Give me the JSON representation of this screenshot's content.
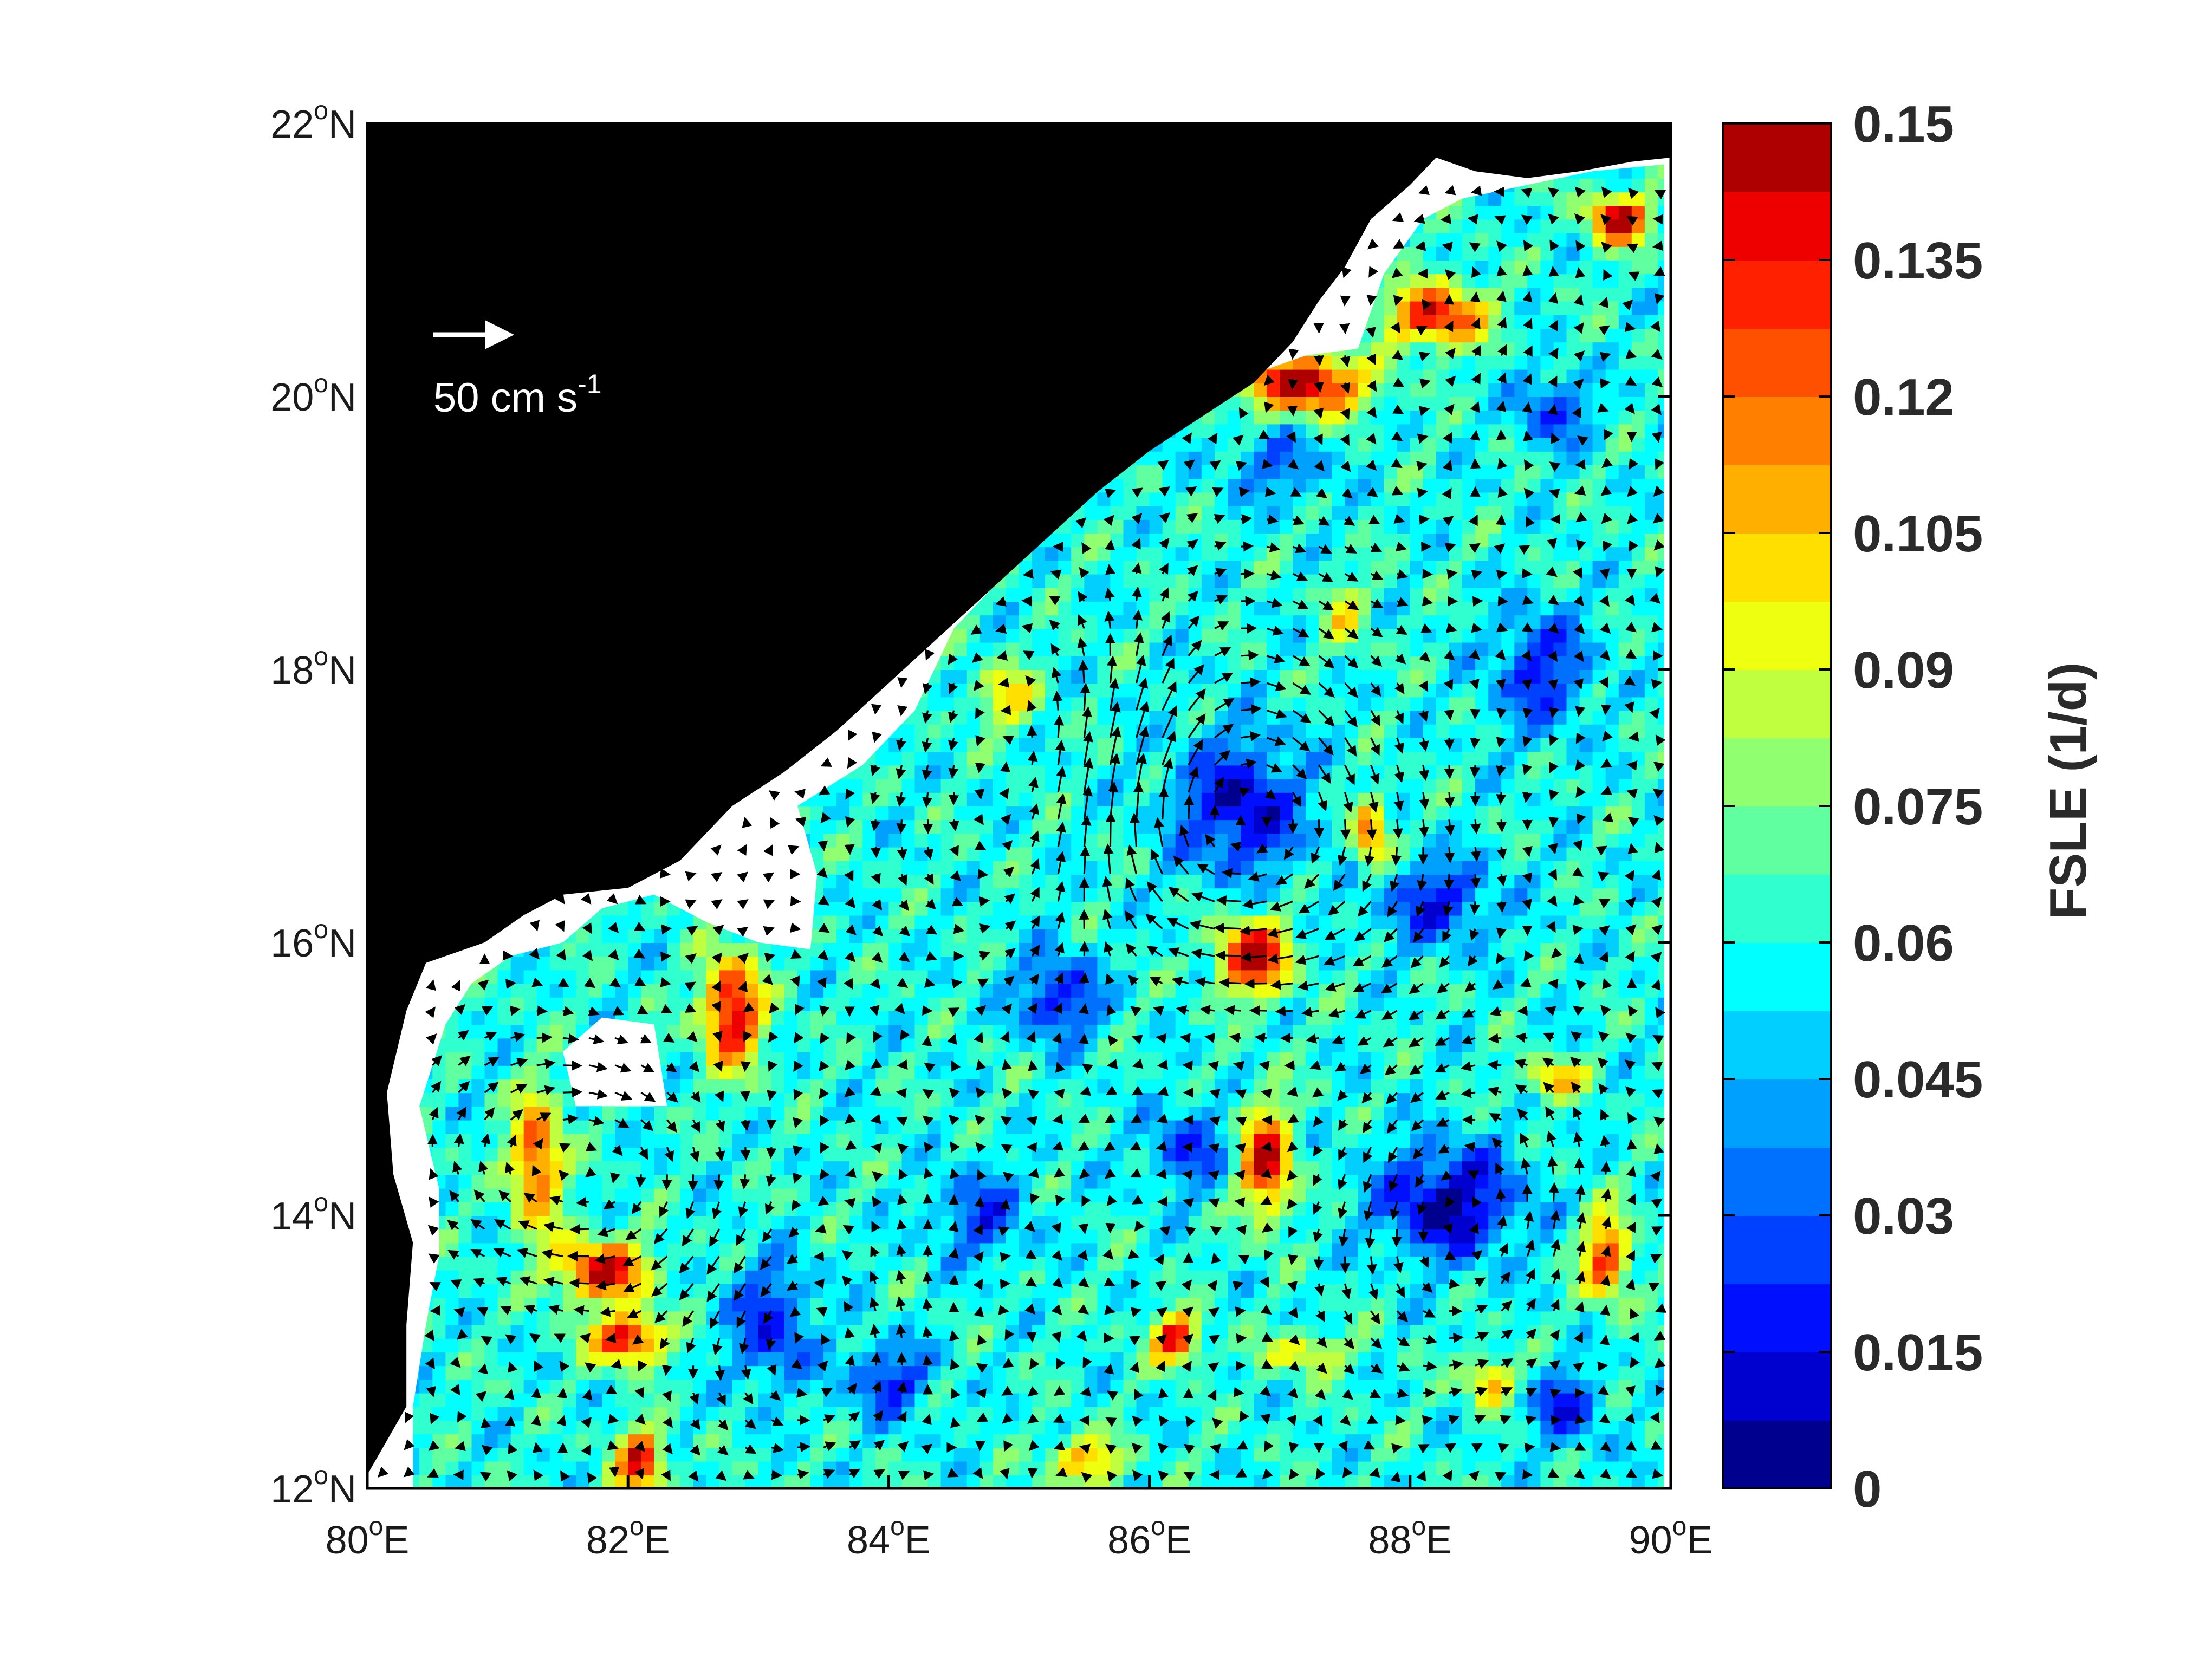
{
  "map": {
    "x_axis": {
      "ticks": [
        80,
        82,
        84,
        86,
        88,
        90
      ],
      "tick_labels": [
        {
          "num": "80",
          "sup": "o",
          "hemi": "E"
        },
        {
          "num": "82",
          "sup": "o",
          "hemi": "E"
        },
        {
          "num": "84",
          "sup": "o",
          "hemi": "E"
        },
        {
          "num": "86",
          "sup": "o",
          "hemi": "E"
        },
        {
          "num": "88",
          "sup": "o",
          "hemi": "E"
        },
        {
          "num": "90",
          "sup": "o",
          "hemi": "E"
        }
      ],
      "range": [
        80,
        90
      ]
    },
    "y_axis": {
      "ticks": [
        12,
        14,
        16,
        18,
        20,
        22
      ],
      "tick_labels": [
        {
          "num": "12",
          "sup": "o",
          "hemi": "N"
        },
        {
          "num": "14",
          "sup": "o",
          "hemi": "N"
        },
        {
          "num": "16",
          "sup": "o",
          "hemi": "N"
        },
        {
          "num": "18",
          "sup": "o",
          "hemi": "N"
        },
        {
          "num": "20",
          "sup": "o",
          "hemi": "N"
        },
        {
          "num": "22",
          "sup": "o",
          "hemi": "N"
        }
      ],
      "range": [
        12,
        22
      ]
    },
    "land_color": "#000000",
    "coastal_gap_color": "#ffffff",
    "coastline_lonlat": [
      [
        80.0,
        12.1
      ],
      [
        80.3,
        12.6
      ],
      [
        80.3,
        13.2
      ],
      [
        80.35,
        13.8
      ],
      [
        80.2,
        14.3
      ],
      [
        80.15,
        14.9
      ],
      [
        80.3,
        15.5
      ],
      [
        80.45,
        15.85
      ],
      [
        80.9,
        16.0
      ],
      [
        81.2,
        16.2
      ],
      [
        81.5,
        16.35
      ],
      [
        82.0,
        16.4
      ],
      [
        82.4,
        16.6
      ],
      [
        82.8,
        17.0
      ],
      [
        83.2,
        17.25
      ],
      [
        83.6,
        17.55
      ],
      [
        84.0,
        17.9
      ],
      [
        84.4,
        18.25
      ],
      [
        84.8,
        18.6
      ],
      [
        85.2,
        18.95
      ],
      [
        85.6,
        19.3
      ],
      [
        86.0,
        19.6
      ],
      [
        86.4,
        19.85
      ],
      [
        86.8,
        20.1
      ],
      [
        87.1,
        20.4
      ],
      [
        87.3,
        20.7
      ],
      [
        87.5,
        20.95
      ],
      [
        87.7,
        21.3
      ],
      [
        88.0,
        21.55
      ],
      [
        88.2,
        21.75
      ],
      [
        88.5,
        21.65
      ],
      [
        88.9,
        21.6
      ],
      [
        89.3,
        21.65
      ],
      [
        89.7,
        21.72
      ],
      [
        90.0,
        21.75
      ]
    ],
    "colored_domain_lonlat": [
      [
        80.35,
        12.0
      ],
      [
        80.35,
        12.6
      ],
      [
        80.45,
        13.2
      ],
      [
        80.55,
        13.7
      ],
      [
        80.55,
        14.2
      ],
      [
        80.4,
        14.8
      ],
      [
        80.6,
        15.4
      ],
      [
        80.8,
        15.7
      ],
      [
        81.1,
        15.9
      ],
      [
        81.5,
        16.0
      ],
      [
        81.8,
        16.25
      ],
      [
        82.2,
        16.35
      ],
      [
        82.6,
        16.15
      ],
      [
        83.0,
        16.0
      ],
      [
        83.4,
        15.95
      ],
      [
        83.45,
        16.5
      ],
      [
        83.3,
        17.0
      ],
      [
        83.8,
        17.3
      ],
      [
        84.2,
        17.7
      ],
      [
        84.5,
        18.3
      ],
      [
        84.8,
        18.6
      ],
      [
        85.1,
        19.0
      ],
      [
        85.5,
        19.4
      ],
      [
        85.9,
        19.6
      ],
      [
        86.3,
        19.9
      ],
      [
        86.6,
        20.1
      ],
      [
        87.2,
        20.3
      ],
      [
        87.6,
        20.35
      ],
      [
        87.8,
        20.9
      ],
      [
        88.1,
        21.3
      ],
      [
        88.4,
        21.45
      ],
      [
        88.9,
        21.55
      ],
      [
        89.4,
        21.65
      ],
      [
        89.95,
        21.7
      ],
      [
        89.95,
        12.0
      ]
    ],
    "white_patch_lonlat": [
      [
        81.6,
        14.8
      ],
      [
        82.3,
        14.8
      ],
      [
        82.2,
        15.4
      ],
      [
        81.8,
        15.45
      ],
      [
        81.5,
        15.2
      ]
    ],
    "velocity_legend": {
      "label_main": "50 cm s",
      "label_sup": "-1",
      "color": "#ffffff"
    },
    "fsle_features": [
      {
        "lon": 86.7,
        "lat": 17.0,
        "value": 0.01,
        "spread_lon": 0.55,
        "spread_lat": 0.55
      },
      {
        "lon": 88.3,
        "lat": 14.1,
        "value": 0.005,
        "spread_lon": 0.6,
        "spread_lat": 0.45
      },
      {
        "lon": 85.3,
        "lat": 15.6,
        "value": 0.015,
        "spread_lon": 0.35,
        "spread_lat": 0.35
      },
      {
        "lon": 83.1,
        "lat": 13.2,
        "value": 0.02,
        "spread_lon": 0.35,
        "spread_lat": 0.5
      },
      {
        "lon": 84.0,
        "lat": 12.8,
        "value": 0.02,
        "spread_lon": 0.35,
        "spread_lat": 0.3
      },
      {
        "lon": 89.2,
        "lat": 12.6,
        "value": 0.02,
        "spread_lon": 0.3,
        "spread_lat": 0.3
      },
      {
        "lon": 89.0,
        "lat": 18.0,
        "value": 0.02,
        "spread_lon": 0.4,
        "spread_lat": 0.5
      },
      {
        "lon": 86.3,
        "lat": 14.5,
        "value": 0.025,
        "spread_lon": 0.35,
        "spread_lat": 0.35
      },
      {
        "lon": 88.2,
        "lat": 16.3,
        "value": 0.02,
        "spread_lon": 0.5,
        "spread_lat": 0.35
      },
      {
        "lon": 89.1,
        "lat": 19.9,
        "value": 0.025,
        "spread_lon": 0.3,
        "spread_lat": 0.3
      },
      {
        "lon": 84.7,
        "lat": 14.0,
        "value": 0.025,
        "spread_lon": 0.4,
        "spread_lat": 0.35
      },
      {
        "lon": 87.0,
        "lat": 19.5,
        "value": 0.03,
        "spread_lon": 0.4,
        "spread_lat": 0.3
      },
      {
        "lon": 81.3,
        "lat": 14.4,
        "value": 0.13,
        "spread_lon": 0.22,
        "spread_lat": 0.55
      },
      {
        "lon": 81.8,
        "lat": 13.6,
        "value": 0.14,
        "spread_lon": 0.4,
        "spread_lat": 0.25
      },
      {
        "lon": 82.0,
        "lat": 13.1,
        "value": 0.145,
        "spread_lon": 0.3,
        "spread_lat": 0.2
      },
      {
        "lon": 82.8,
        "lat": 15.5,
        "value": 0.145,
        "spread_lon": 0.25,
        "spread_lat": 0.45
      },
      {
        "lon": 82.1,
        "lat": 12.2,
        "value": 0.14,
        "spread_lon": 0.2,
        "spread_lat": 0.25
      },
      {
        "lon": 86.8,
        "lat": 15.9,
        "value": 0.15,
        "spread_lon": 0.3,
        "spread_lat": 0.3
      },
      {
        "lon": 86.9,
        "lat": 14.4,
        "value": 0.14,
        "spread_lon": 0.22,
        "spread_lat": 0.45
      },
      {
        "lon": 86.2,
        "lat": 13.1,
        "value": 0.14,
        "spread_lon": 0.2,
        "spread_lat": 0.2
      },
      {
        "lon": 87.2,
        "lat": 20.1,
        "value": 0.15,
        "spread_lon": 0.5,
        "spread_lat": 0.25
      },
      {
        "lon": 88.2,
        "lat": 20.6,
        "value": 0.14,
        "spread_lon": 0.4,
        "spread_lat": 0.25
      },
      {
        "lon": 89.6,
        "lat": 21.3,
        "value": 0.15,
        "spread_lon": 0.25,
        "spread_lat": 0.2
      },
      {
        "lon": 89.5,
        "lat": 13.7,
        "value": 0.13,
        "spread_lon": 0.2,
        "spread_lat": 0.35
      },
      {
        "lon": 89.1,
        "lat": 15.0,
        "value": 0.11,
        "spread_lon": 0.25,
        "spread_lat": 0.15
      },
      {
        "lon": 87.7,
        "lat": 16.8,
        "value": 0.12,
        "spread_lon": 0.15,
        "spread_lat": 0.3
      },
      {
        "lon": 88.6,
        "lat": 12.8,
        "value": 0.11,
        "spread_lon": 0.2,
        "spread_lat": 0.2
      },
      {
        "lon": 84.9,
        "lat": 17.8,
        "value": 0.1,
        "spread_lon": 0.25,
        "spread_lat": 0.25
      },
      {
        "lon": 87.5,
        "lat": 18.4,
        "value": 0.09,
        "spread_lon": 0.2,
        "spread_lat": 0.3
      },
      {
        "lon": 85.5,
        "lat": 12.2,
        "value": 0.11,
        "spread_lon": 0.3,
        "spread_lat": 0.2
      },
      {
        "lon": 87.2,
        "lat": 13.0,
        "value": 0.1,
        "spread_lon": 0.35,
        "spread_lat": 0.15
      }
    ],
    "fsle_background": 0.06,
    "circulation": [
      {
        "lon": 81.6,
        "lat": 14.4,
        "strength": 0.9,
        "radius": 1.0,
        "sense": -1
      },
      {
        "lon": 86.7,
        "lat": 17.0,
        "strength": 1.0,
        "radius": 1.3,
        "sense": -1
      },
      {
        "lon": 88.4,
        "lat": 14.0,
        "strength": 0.8,
        "radius": 1.0,
        "sense": 1
      },
      {
        "lon": 85.2,
        "lat": 17.2,
        "strength": 0.7,
        "radius": 1.1,
        "sense": 1
      },
      {
        "lon": 83.4,
        "lat": 13.2,
        "strength": 0.6,
        "radius": 0.9,
        "sense": 1
      },
      {
        "lon": 87.9,
        "lat": 20.5,
        "strength": 0.6,
        "radius": 0.8,
        "sense": 1
      }
    ]
  },
  "colorbar": {
    "title": "FSLE (1/d)",
    "tick_labels": [
      "0.15",
      "0.135",
      "0.12",
      "0.105",
      "0.09",
      "0.075",
      "0.06",
      "0.045",
      "0.03",
      "0.015",
      "0"
    ],
    "tick_values": [
      0.15,
      0.135,
      0.12,
      0.105,
      0.09,
      0.075,
      0.06,
      0.045,
      0.03,
      0.015,
      0
    ],
    "range": [
      0,
      0.15
    ],
    "levels": 20,
    "colors": [
      "#00008f",
      "#0000cf",
      "#0010ff",
      "#0040ff",
      "#0070ff",
      "#00a0ff",
      "#00cfff",
      "#00ffff",
      "#30ffcf",
      "#60ff9f",
      "#90ff70",
      "#bfff40",
      "#efff10",
      "#ffdf00",
      "#ffaf00",
      "#ff8000",
      "#ff5000",
      "#ff2000",
      "#ef0000",
      "#af0000"
    ]
  }
}
